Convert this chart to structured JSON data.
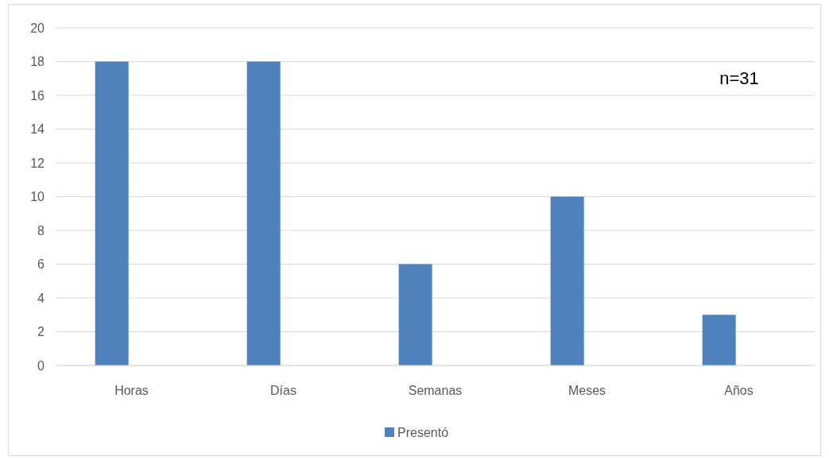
{
  "chart_data": {
    "type": "bar",
    "categories": [
      "Horas",
      "Días",
      "Semanas",
      "Meses",
      "Años"
    ],
    "series": [
      {
        "name": "Presentó",
        "color": "#4f81bd",
        "values": [
          18,
          18,
          6,
          10,
          3
        ]
      }
    ],
    "ylim": [
      0,
      20
    ],
    "yticks": [
      0,
      2,
      4,
      6,
      8,
      10,
      12,
      14,
      16,
      18,
      20
    ],
    "grid": "y",
    "legend": "bottom",
    "annotations": [
      "n=31"
    ]
  }
}
